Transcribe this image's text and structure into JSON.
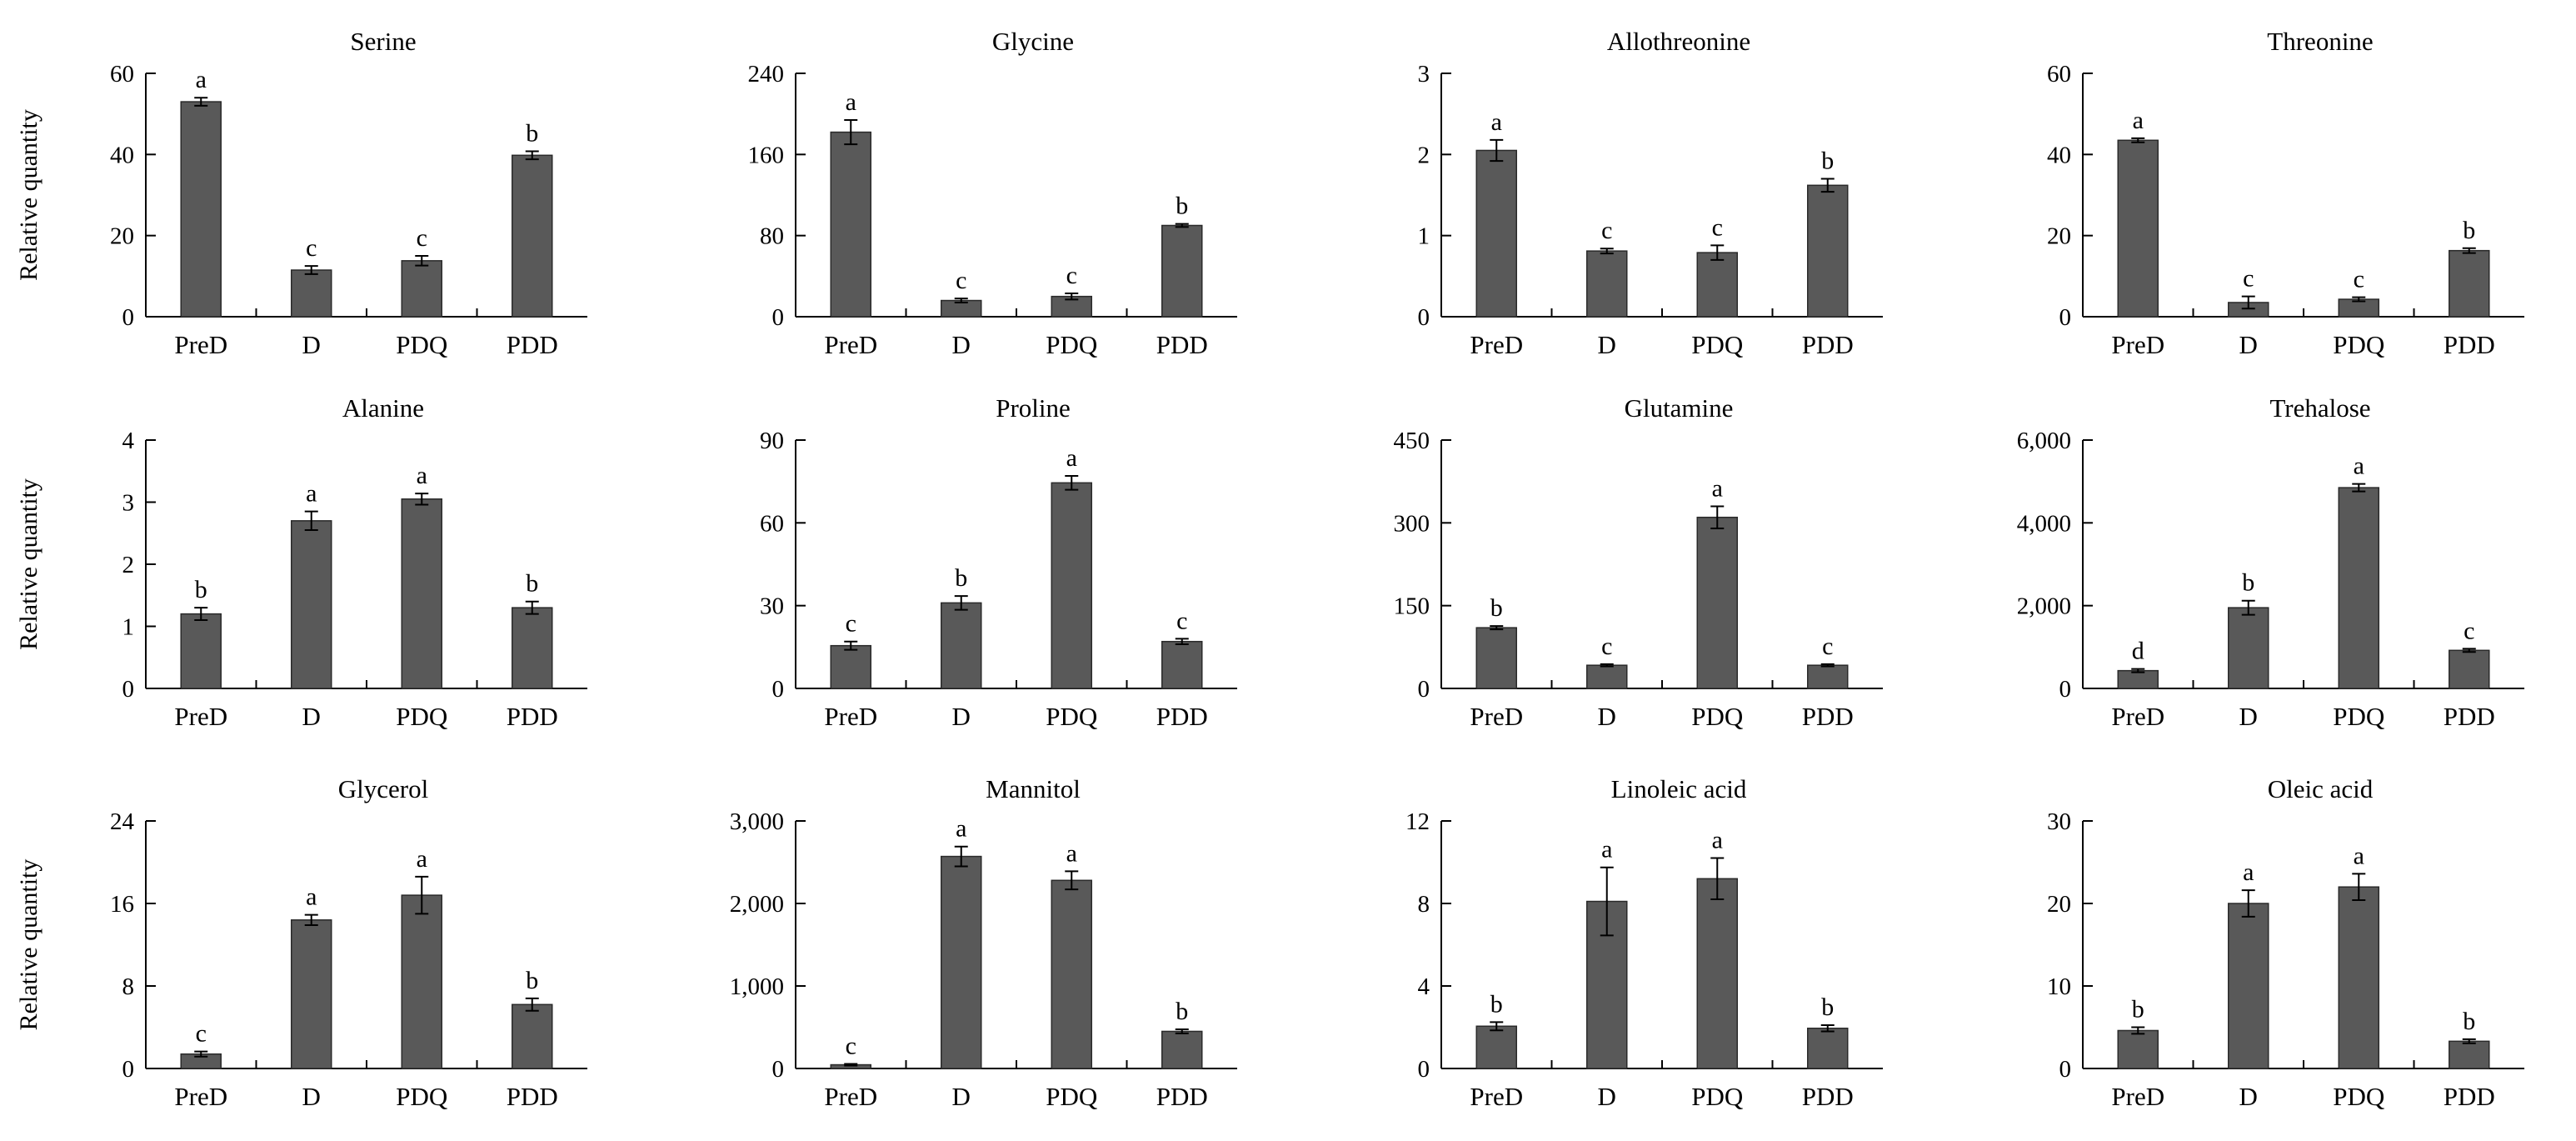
{
  "figure": {
    "ylabel": "Relative quantity",
    "categories": [
      "PreD",
      "D",
      "PDQ",
      "PDD"
    ]
  },
  "colors": {
    "bar": "#595959",
    "axis": "#000000",
    "background": "#ffffff"
  },
  "chart_data": [
    {
      "type": "bar",
      "title": "Serine",
      "categories": [
        "PreD",
        "D",
        "PDQ",
        "PDD"
      ],
      "ylim": [
        0,
        60
      ],
      "ticks": [
        "0",
        "20",
        "40",
        "60"
      ],
      "tick_values": [
        0,
        20,
        40,
        60
      ],
      "values": [
        53,
        11.5,
        13.8,
        39.8
      ],
      "errors": [
        1.0,
        1.0,
        1.2,
        1.0
      ],
      "letters": [
        "a",
        "c",
        "c",
        "b"
      ],
      "ylabel": "Relative quantity"
    },
    {
      "type": "bar",
      "title": "Glycine",
      "categories": [
        "PreD",
        "D",
        "PDQ",
        "PDD"
      ],
      "ylim": [
        0,
        240
      ],
      "ticks": [
        "0",
        "80",
        "160",
        "240"
      ],
      "tick_values": [
        0,
        80,
        160,
        240
      ],
      "values": [
        182,
        16,
        20,
        90
      ],
      "errors": [
        12,
        2,
        3,
        1.5
      ],
      "letters": [
        "a",
        "c",
        "c",
        "b"
      ],
      "ylabel": ""
    },
    {
      "type": "bar",
      "title": "Allothreonine",
      "categories": [
        "PreD",
        "D",
        "PDQ",
        "PDD"
      ],
      "ylim": [
        0,
        3
      ],
      "ticks": [
        "0",
        "1",
        "2",
        "3"
      ],
      "tick_values": [
        0,
        1,
        2,
        3
      ],
      "values": [
        2.05,
        0.81,
        0.79,
        1.62
      ],
      "errors": [
        0.13,
        0.03,
        0.09,
        0.08
      ],
      "letters": [
        "a",
        "c",
        "c",
        "b"
      ],
      "ylabel": ""
    },
    {
      "type": "bar",
      "title": "Threonine",
      "categories": [
        "PreD",
        "D",
        "PDQ",
        "PDD"
      ],
      "ylim": [
        0,
        60
      ],
      "ticks": [
        "0",
        "20",
        "40",
        "60"
      ],
      "tick_values": [
        0,
        20,
        40,
        60
      ],
      "values": [
        43.5,
        3.5,
        4.3,
        16.3
      ],
      "errors": [
        0.5,
        1.5,
        0.5,
        0.6
      ],
      "letters": [
        "a",
        "c",
        "c",
        "b"
      ],
      "ylabel": ""
    },
    {
      "type": "bar",
      "title": "Alanine",
      "categories": [
        "PreD",
        "D",
        "PDQ",
        "PDD"
      ],
      "ylim": [
        0,
        4
      ],
      "ticks": [
        "0",
        "1",
        "2",
        "3",
        "4"
      ],
      "tick_values": [
        0,
        1,
        2,
        3,
        4
      ],
      "values": [
        1.2,
        2.7,
        3.05,
        1.3
      ],
      "errors": [
        0.1,
        0.15,
        0.09,
        0.1
      ],
      "letters": [
        "b",
        "a",
        "a",
        "b"
      ],
      "ylabel": "Relative quantity"
    },
    {
      "type": "bar",
      "title": "Proline",
      "categories": [
        "PreD",
        "D",
        "PDQ",
        "PDD"
      ],
      "ylim": [
        0,
        90
      ],
      "ticks": [
        "0",
        "30",
        "60",
        "90"
      ],
      "tick_values": [
        0,
        30,
        60,
        90
      ],
      "values": [
        15.5,
        31,
        74.5,
        17
      ],
      "errors": [
        1.5,
        2.5,
        2.5,
        1.0
      ],
      "letters": [
        "c",
        "b",
        "a",
        "c"
      ],
      "ylabel": ""
    },
    {
      "type": "bar",
      "title": "Glutamine",
      "categories": [
        "PreD",
        "D",
        "PDQ",
        "PDD"
      ],
      "ylim": [
        0,
        450
      ],
      "ticks": [
        "0",
        "150",
        "300",
        "450"
      ],
      "tick_values": [
        0,
        150,
        300,
        450
      ],
      "values": [
        110,
        42,
        310,
        42
      ],
      "errors": [
        3,
        2,
        20,
        2
      ],
      "letters": [
        "b",
        "c",
        "a",
        "c"
      ],
      "ylabel": ""
    },
    {
      "type": "bar",
      "title": "Trehalose",
      "categories": [
        "PreD",
        "D",
        "PDQ",
        "PDD"
      ],
      "ylim": [
        0,
        6000
      ],
      "ticks": [
        "0",
        "2,000",
        "4,000",
        "6,000"
      ],
      "tick_values": [
        0,
        2000,
        4000,
        6000
      ],
      "values": [
        430,
        1950,
        4850,
        920
      ],
      "errors": [
        40,
        170,
        90,
        40
      ],
      "letters": [
        "d",
        "b",
        "a",
        "c"
      ],
      "ylabel": ""
    },
    {
      "type": "bar",
      "title": "Glycerol",
      "categories": [
        "PreD",
        "D",
        "PDQ",
        "PDD"
      ],
      "ylim": [
        0,
        24
      ],
      "ticks": [
        "0",
        "8",
        "16",
        "24"
      ],
      "tick_values": [
        0,
        8,
        16,
        24
      ],
      "values": [
        1.4,
        14.4,
        16.8,
        6.2
      ],
      "errors": [
        0.25,
        0.5,
        1.8,
        0.6
      ],
      "letters": [
        "c",
        "a",
        "a",
        "b"
      ],
      "ylabel": "Relative quantity"
    },
    {
      "type": "bar",
      "title": "Mannitol",
      "categories": [
        "PreD",
        "D",
        "PDQ",
        "PDD"
      ],
      "ylim": [
        0,
        3000
      ],
      "ticks": [
        "0",
        "1,000",
        "2,000",
        "3,000"
      ],
      "tick_values": [
        0,
        1000,
        2000,
        3000
      ],
      "values": [
        45,
        2570,
        2280,
        450
      ],
      "errors": [
        10,
        120,
        110,
        25
      ],
      "letters": [
        "c",
        "a",
        "a",
        "b"
      ],
      "ylabel": ""
    },
    {
      "type": "bar",
      "title": "Linoleic acid",
      "categories": [
        "PreD",
        "D",
        "PDQ",
        "PDD"
      ],
      "ylim": [
        0,
        12
      ],
      "ticks": [
        "0",
        "4",
        "8",
        "12"
      ],
      "tick_values": [
        0,
        4,
        8,
        12
      ],
      "values": [
        2.05,
        8.1,
        9.2,
        1.95
      ],
      "errors": [
        0.2,
        1.65,
        1.0,
        0.15
      ],
      "letters": [
        "b",
        "a",
        "a",
        "b"
      ],
      "ylabel": ""
    },
    {
      "type": "bar",
      "title": "Oleic acid",
      "categories": [
        "PreD",
        "D",
        "PDQ",
        "PDD"
      ],
      "ylim": [
        0,
        30
      ],
      "ticks": [
        "0",
        "10",
        "20",
        "30"
      ],
      "tick_values": [
        0,
        10,
        20,
        30
      ],
      "values": [
        4.6,
        20,
        22,
        3.3
      ],
      "errors": [
        0.4,
        1.6,
        1.6,
        0.25
      ],
      "letters": [
        "b",
        "a",
        "a",
        "b"
      ],
      "ylabel": ""
    }
  ]
}
